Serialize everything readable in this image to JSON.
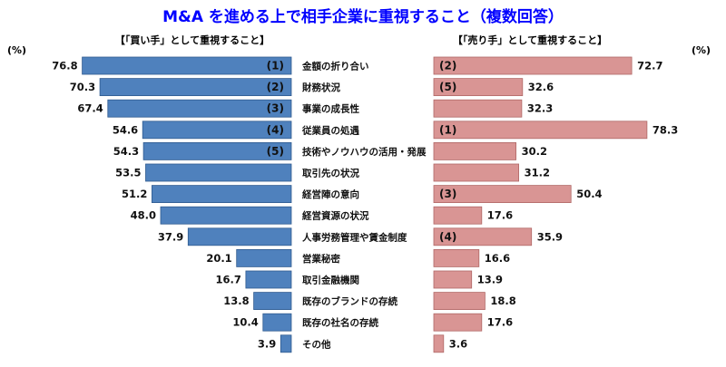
{
  "chart_data": {
    "type": "bar",
    "title": "M&A を進める上で相手企業に重視すること（複数回答）",
    "unit_label": "(%)",
    "left_header": "【「買い手」として重視すること】",
    "right_header": "【「売り手」として重視すること】",
    "categories": [
      "金額の折り合い",
      "財務状況",
      "事業の成長性",
      "従業員の処遇",
      "技術やノウハウの活用・発展",
      "取引先の状況",
      "経営陣の意向",
      "経営資源の状況",
      "人事労務管理や賃金制度",
      "営業秘密",
      "取引金融機関",
      "既存のブランドの存続",
      "既存の社名の存続",
      "その他"
    ],
    "series": [
      {
        "values": [
          76.8,
          70.3,
          67.4,
          54.6,
          54.3,
          53.5,
          51.2,
          48.0,
          37.9,
          20.1,
          16.7,
          13.8,
          10.4,
          3.9
        ],
        "value_labels": [
          "76.8",
          "70.3",
          "67.4",
          "54.6",
          "54.3",
          "53.5",
          "51.2",
          "48.0",
          "37.9",
          "20.1",
          "16.7",
          "13.8",
          "10.4",
          "3.9"
        ],
        "ranks": [
          "(1)",
          "(2)",
          "(3)",
          "(4)",
          "(5)",
          "",
          "",
          "",
          "",
          "",
          "",
          "",
          "",
          ""
        ],
        "color": "#4f81bd"
      },
      {
        "values": [
          72.7,
          32.6,
          32.3,
          78.3,
          30.2,
          31.2,
          50.4,
          17.6,
          35.9,
          16.6,
          13.9,
          18.8,
          17.6,
          3.6
        ],
        "value_labels": [
          "72.7",
          "32.6",
          "32.3",
          "78.3",
          "30.2",
          "31.2",
          "50.4",
          "17.6",
          "35.9",
          "16.6",
          "13.9",
          "18.8",
          "17.6",
          "3.6"
        ],
        "ranks": [
          "(2)",
          "(5)",
          "",
          "(1)",
          "",
          "",
          "(3)",
          "",
          "(4)",
          "",
          "",
          "",
          "",
          ""
        ],
        "color": "#d99594"
      }
    ],
    "title_color": "#0000ff"
  }
}
